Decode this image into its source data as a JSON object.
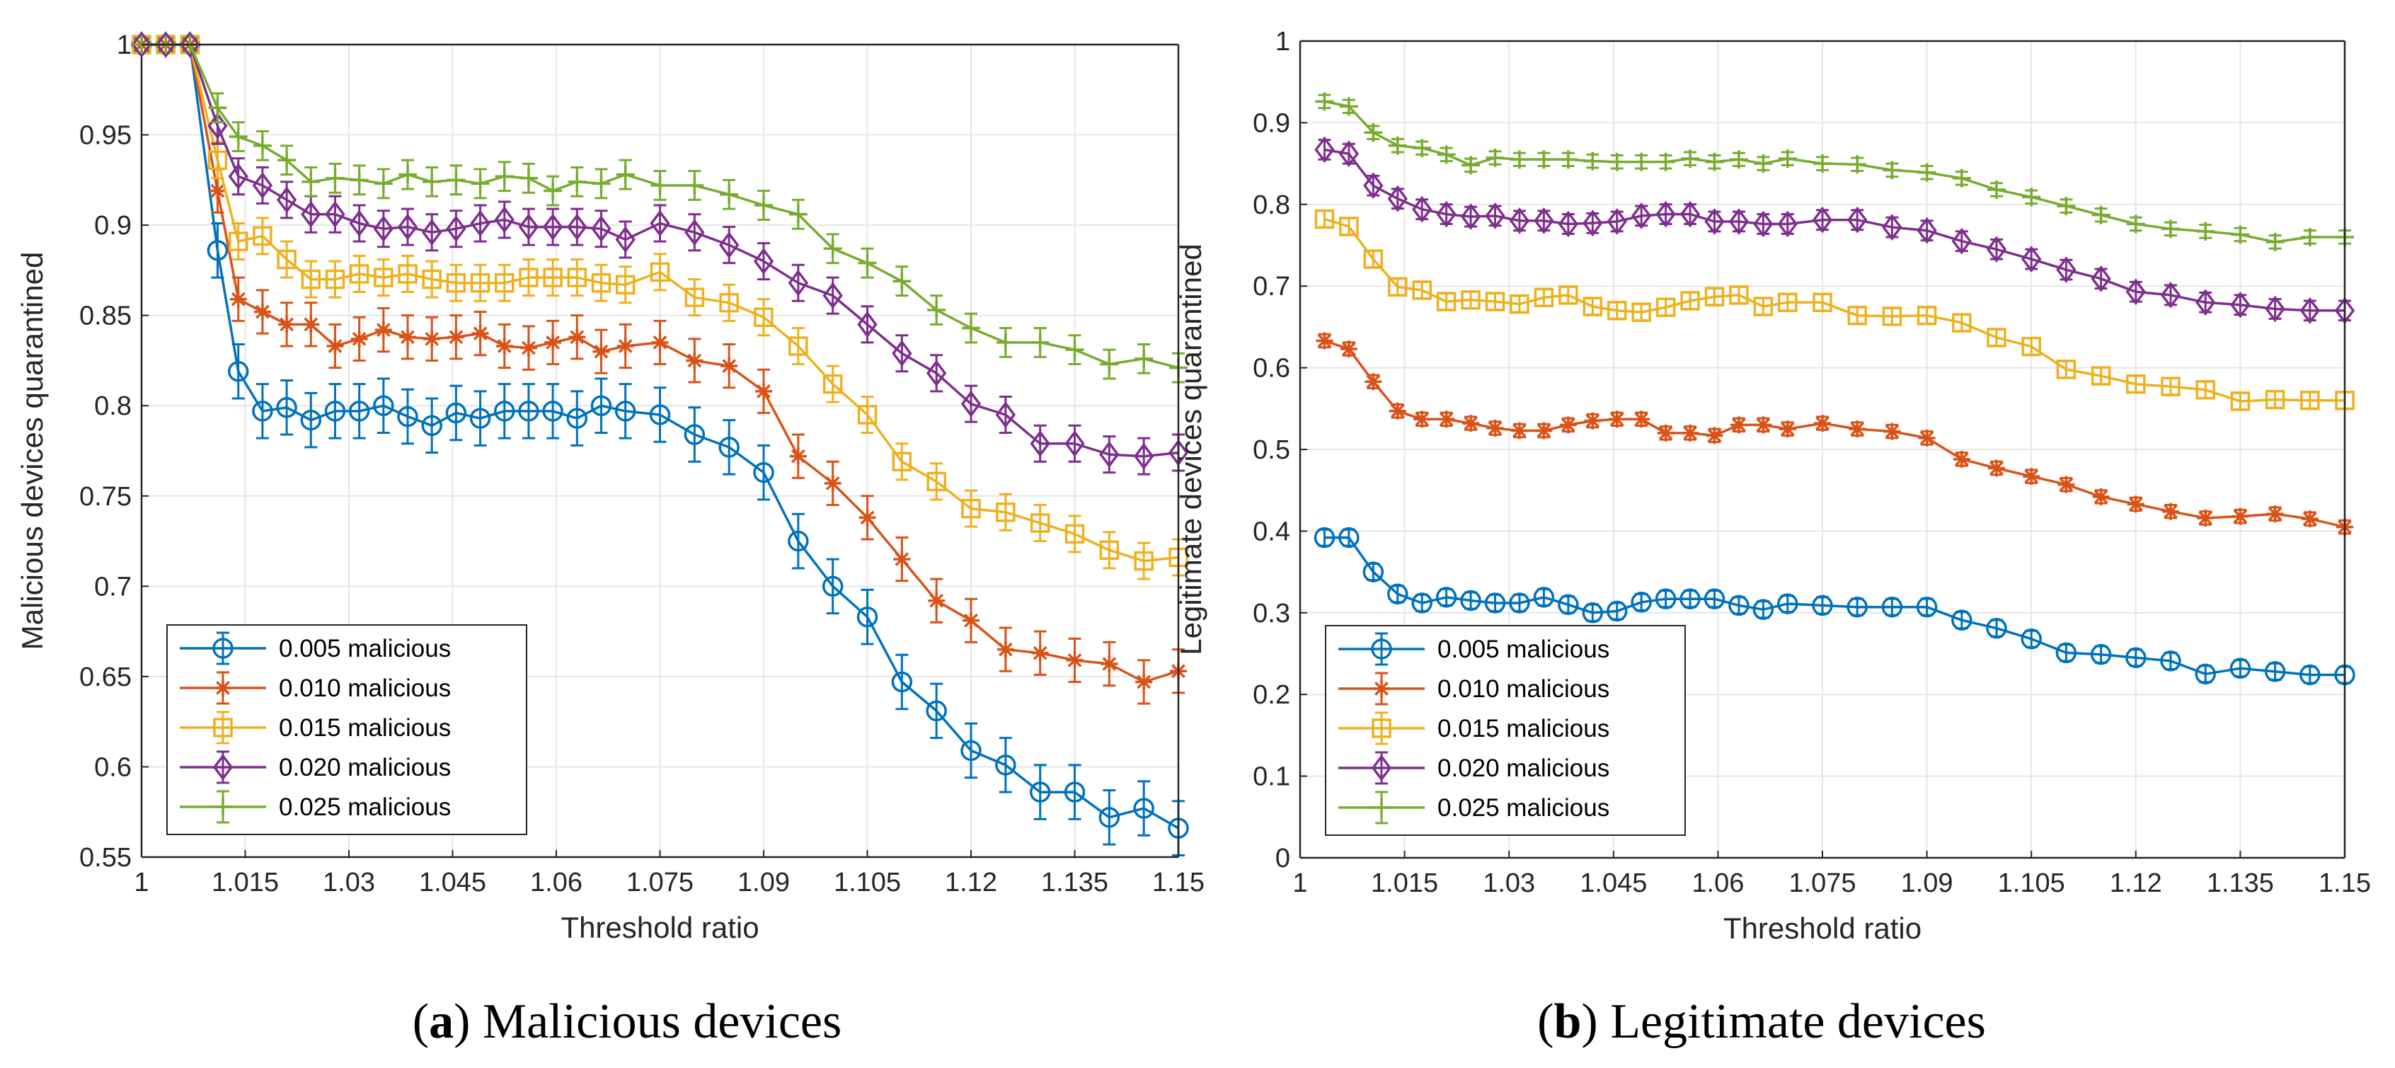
{
  "colors": {
    "0.005 malicious": "#0072BD",
    "0.010 malicious": "#D95319",
    "0.015 malicious": "#EDB120",
    "0.020 malicious": "#7E2F8E",
    "0.025 malicious": "#77AC30",
    "grid": "#e6e6e6",
    "axis": "#262626"
  },
  "captions": [
    {
      "letter": "a",
      "text": " Malicious devices",
      "open": "(",
      "close": ")"
    },
    {
      "letter": "b",
      "text": " Legitimate devices",
      "open": "(",
      "close": ")"
    }
  ],
  "chart_data": [
    {
      "type": "line",
      "title": "",
      "xlabel": "Threshold ratio",
      "ylabel": "Malicious devices quarantined",
      "xlim": [
        1,
        1.15
      ],
      "ylim": [
        0.55,
        1
      ],
      "xticks": [
        1,
        1.015,
        1.03,
        1.045,
        1.06,
        1.075,
        1.09,
        1.105,
        1.12,
        1.135,
        1.15
      ],
      "xtick_labels": [
        "1",
        "1.015",
        "1.03",
        "1.045",
        "1.06",
        "1.075",
        "1.09",
        "1.105",
        "1.12",
        "1.135",
        "1.15"
      ],
      "yticks": [
        0.55,
        0.6,
        0.65,
        0.7,
        0.75,
        0.8,
        0.85,
        0.9,
        0.95,
        1
      ],
      "ytick_labels": [
        "0.55",
        "0.6",
        "0.65",
        "0.7",
        "0.75",
        "0.8",
        "0.85",
        "0.9",
        "0.95",
        "1"
      ],
      "grid": true,
      "legend_position": "bottom-left",
      "error_bars": true,
      "x": [
        1,
        1.0035,
        1.007,
        1.011,
        1.014,
        1.0175,
        1.021,
        1.0245,
        1.028,
        1.0315,
        1.035,
        1.0385,
        1.042,
        1.0455,
        1.049,
        1.0525,
        1.056,
        1.0595,
        1.063,
        1.0665,
        1.07,
        1.075,
        1.08,
        1.085,
        1.09,
        1.095,
        1.1,
        1.105,
        1.11,
        1.115,
        1.12,
        1.125,
        1.13,
        1.135,
        1.14,
        1.145,
        1.15
      ],
      "series": [
        {
          "name": "0.005 malicious",
          "marker": "circle",
          "values": [
            1,
            1,
            1,
            0.886,
            0.819,
            0.797,
            0.799,
            0.792,
            0.797,
            0.797,
            0.8,
            0.794,
            0.789,
            0.796,
            0.793,
            0.797,
            0.797,
            0.797,
            0.793,
            0.8,
            0.797,
            0.795,
            0.784,
            0.777,
            0.763,
            0.725,
            0.7,
            0.683,
            0.647,
            0.631,
            0.609,
            0.601,
            0.586,
            0.586,
            0.572,
            0.577,
            0.566
          ],
          "err": 0.015
        },
        {
          "name": "0.010 malicious",
          "marker": "star",
          "values": [
            1,
            1,
            1,
            0.919,
            0.859,
            0.852,
            0.845,
            0.845,
            0.833,
            0.837,
            0.842,
            0.838,
            0.837,
            0.838,
            0.84,
            0.833,
            0.832,
            0.835,
            0.838,
            0.83,
            0.833,
            0.835,
            0.825,
            0.822,
            0.808,
            0.772,
            0.757,
            0.738,
            0.715,
            0.692,
            0.681,
            0.665,
            0.663,
            0.659,
            0.657,
            0.647,
            0.653
          ],
          "err": 0.012
        },
        {
          "name": "0.015 malicious",
          "marker": "square",
          "values": [
            1,
            1,
            1,
            0.936,
            0.891,
            0.894,
            0.881,
            0.87,
            0.87,
            0.873,
            0.871,
            0.873,
            0.87,
            0.868,
            0.868,
            0.868,
            0.871,
            0.871,
            0.871,
            0.868,
            0.867,
            0.874,
            0.86,
            0.857,
            0.849,
            0.833,
            0.812,
            0.795,
            0.769,
            0.758,
            0.743,
            0.741,
            0.735,
            0.729,
            0.72,
            0.714,
            0.716
          ],
          "err": 0.01
        },
        {
          "name": "0.020 malicious",
          "marker": "diamond",
          "values": [
            1,
            1,
            1,
            0.955,
            0.927,
            0.922,
            0.914,
            0.906,
            0.906,
            0.901,
            0.898,
            0.899,
            0.896,
            0.898,
            0.901,
            0.903,
            0.899,
            0.899,
            0.899,
            0.898,
            0.892,
            0.901,
            0.896,
            0.889,
            0.88,
            0.868,
            0.861,
            0.845,
            0.829,
            0.818,
            0.801,
            0.795,
            0.779,
            0.779,
            0.773,
            0.772,
            0.774
          ],
          "err": 0.01
        },
        {
          "name": "0.025 malicious",
          "marker": "plus",
          "values": [
            1,
            1,
            1,
            0.965,
            0.949,
            0.944,
            0.936,
            0.924,
            0.926,
            0.925,
            0.923,
            0.928,
            0.924,
            0.925,
            0.923,
            0.927,
            0.926,
            0.919,
            0.924,
            0.923,
            0.928,
            0.922,
            0.922,
            0.917,
            0.911,
            0.906,
            0.887,
            0.879,
            0.869,
            0.853,
            0.843,
            0.835,
            0.835,
            0.831,
            0.823,
            0.826,
            0.821
          ],
          "err": 0.008
        }
      ]
    },
    {
      "type": "line",
      "title": "",
      "xlabel": "Threshold ratio",
      "ylabel": "Legitimate devices quarantined",
      "xlim": [
        1,
        1.15
      ],
      "ylim": [
        0,
        1
      ],
      "xticks": [
        1,
        1.015,
        1.03,
        1.045,
        1.06,
        1.075,
        1.09,
        1.105,
        1.12,
        1.135,
        1.15
      ],
      "xtick_labels": [
        "1",
        "1.015",
        "1.03",
        "1.045",
        "1.06",
        "1.075",
        "1.09",
        "1.105",
        "1.12",
        "1.135",
        "1.15"
      ],
      "yticks": [
        0,
        0.1,
        0.2,
        0.3,
        0.4,
        0.5,
        0.6,
        0.7,
        0.8,
        0.9,
        1
      ],
      "ytick_labels": [
        "0",
        "0.1",
        "0.2",
        "0.3",
        "0.4",
        "0.5",
        "0.6",
        "0.7",
        "0.8",
        "0.9",
        "1"
      ],
      "grid": true,
      "legend_position": "bottom-left",
      "error_bars": true,
      "x": [
        1.0035,
        1.007,
        1.0105,
        1.014,
        1.0175,
        1.021,
        1.0245,
        1.028,
        1.0315,
        1.035,
        1.0385,
        1.042,
        1.0455,
        1.049,
        1.0525,
        1.056,
        1.0595,
        1.063,
        1.0665,
        1.07,
        1.075,
        1.08,
        1.085,
        1.09,
        1.095,
        1.1,
        1.105,
        1.11,
        1.115,
        1.12,
        1.125,
        1.13,
        1.135,
        1.14,
        1.145,
        1.15
      ],
      "series": [
        {
          "name": "0.005 malicious",
          "marker": "circle",
          "values": [
            0.392,
            0.392,
            0.35,
            0.323,
            0.312,
            0.319,
            0.315,
            0.312,
            0.312,
            0.319,
            0.31,
            0.3,
            0.302,
            0.313,
            0.317,
            0.317,
            0.317,
            0.309,
            0.304,
            0.311,
            0.309,
            0.307,
            0.307,
            0.307,
            0.291,
            0.281,
            0.268,
            0.251,
            0.249,
            0.245,
            0.241,
            0.225,
            0.232,
            0.228,
            0.224,
            0.224
          ],
          "err": 0.01
        },
        {
          "name": "0.010 malicious",
          "marker": "star",
          "values": [
            0.633,
            0.623,
            0.583,
            0.547,
            0.537,
            0.537,
            0.532,
            0.526,
            0.523,
            0.523,
            0.53,
            0.535,
            0.537,
            0.537,
            0.52,
            0.52,
            0.517,
            0.53,
            0.53,
            0.525,
            0.532,
            0.525,
            0.522,
            0.514,
            0.488,
            0.477,
            0.467,
            0.457,
            0.442,
            0.433,
            0.424,
            0.416,
            0.418,
            0.421,
            0.415,
            0.405
          ],
          "err": 0.008
        },
        {
          "name": "0.015 malicious",
          "marker": "square",
          "values": [
            0.782,
            0.773,
            0.733,
            0.699,
            0.695,
            0.681,
            0.683,
            0.681,
            0.678,
            0.686,
            0.689,
            0.675,
            0.67,
            0.668,
            0.674,
            0.682,
            0.687,
            0.689,
            0.675,
            0.68,
            0.68,
            0.664,
            0.663,
            0.664,
            0.655,
            0.637,
            0.626,
            0.598,
            0.59,
            0.58,
            0.577,
            0.573,
            0.559,
            0.561,
            0.56,
            0.56
          ],
          "err": 0.01
        },
        {
          "name": "0.020 malicious",
          "marker": "diamond",
          "values": [
            0.867,
            0.862,
            0.823,
            0.807,
            0.794,
            0.788,
            0.785,
            0.786,
            0.78,
            0.78,
            0.776,
            0.777,
            0.779,
            0.786,
            0.788,
            0.788,
            0.779,
            0.779,
            0.776,
            0.776,
            0.781,
            0.781,
            0.772,
            0.768,
            0.755,
            0.745,
            0.733,
            0.72,
            0.709,
            0.693,
            0.689,
            0.68,
            0.677,
            0.672,
            0.67,
            0.67
          ],
          "err": 0.012
        },
        {
          "name": "0.025 malicious",
          "marker": "plus",
          "values": [
            0.926,
            0.92,
            0.888,
            0.872,
            0.869,
            0.861,
            0.848,
            0.857,
            0.855,
            0.855,
            0.855,
            0.853,
            0.852,
            0.852,
            0.852,
            0.856,
            0.852,
            0.855,
            0.85,
            0.856,
            0.85,
            0.849,
            0.842,
            0.839,
            0.832,
            0.818,
            0.809,
            0.798,
            0.787,
            0.776,
            0.77,
            0.767,
            0.763,
            0.754,
            0.76,
            0.76
          ],
          "err": 0.008
        }
      ]
    }
  ]
}
